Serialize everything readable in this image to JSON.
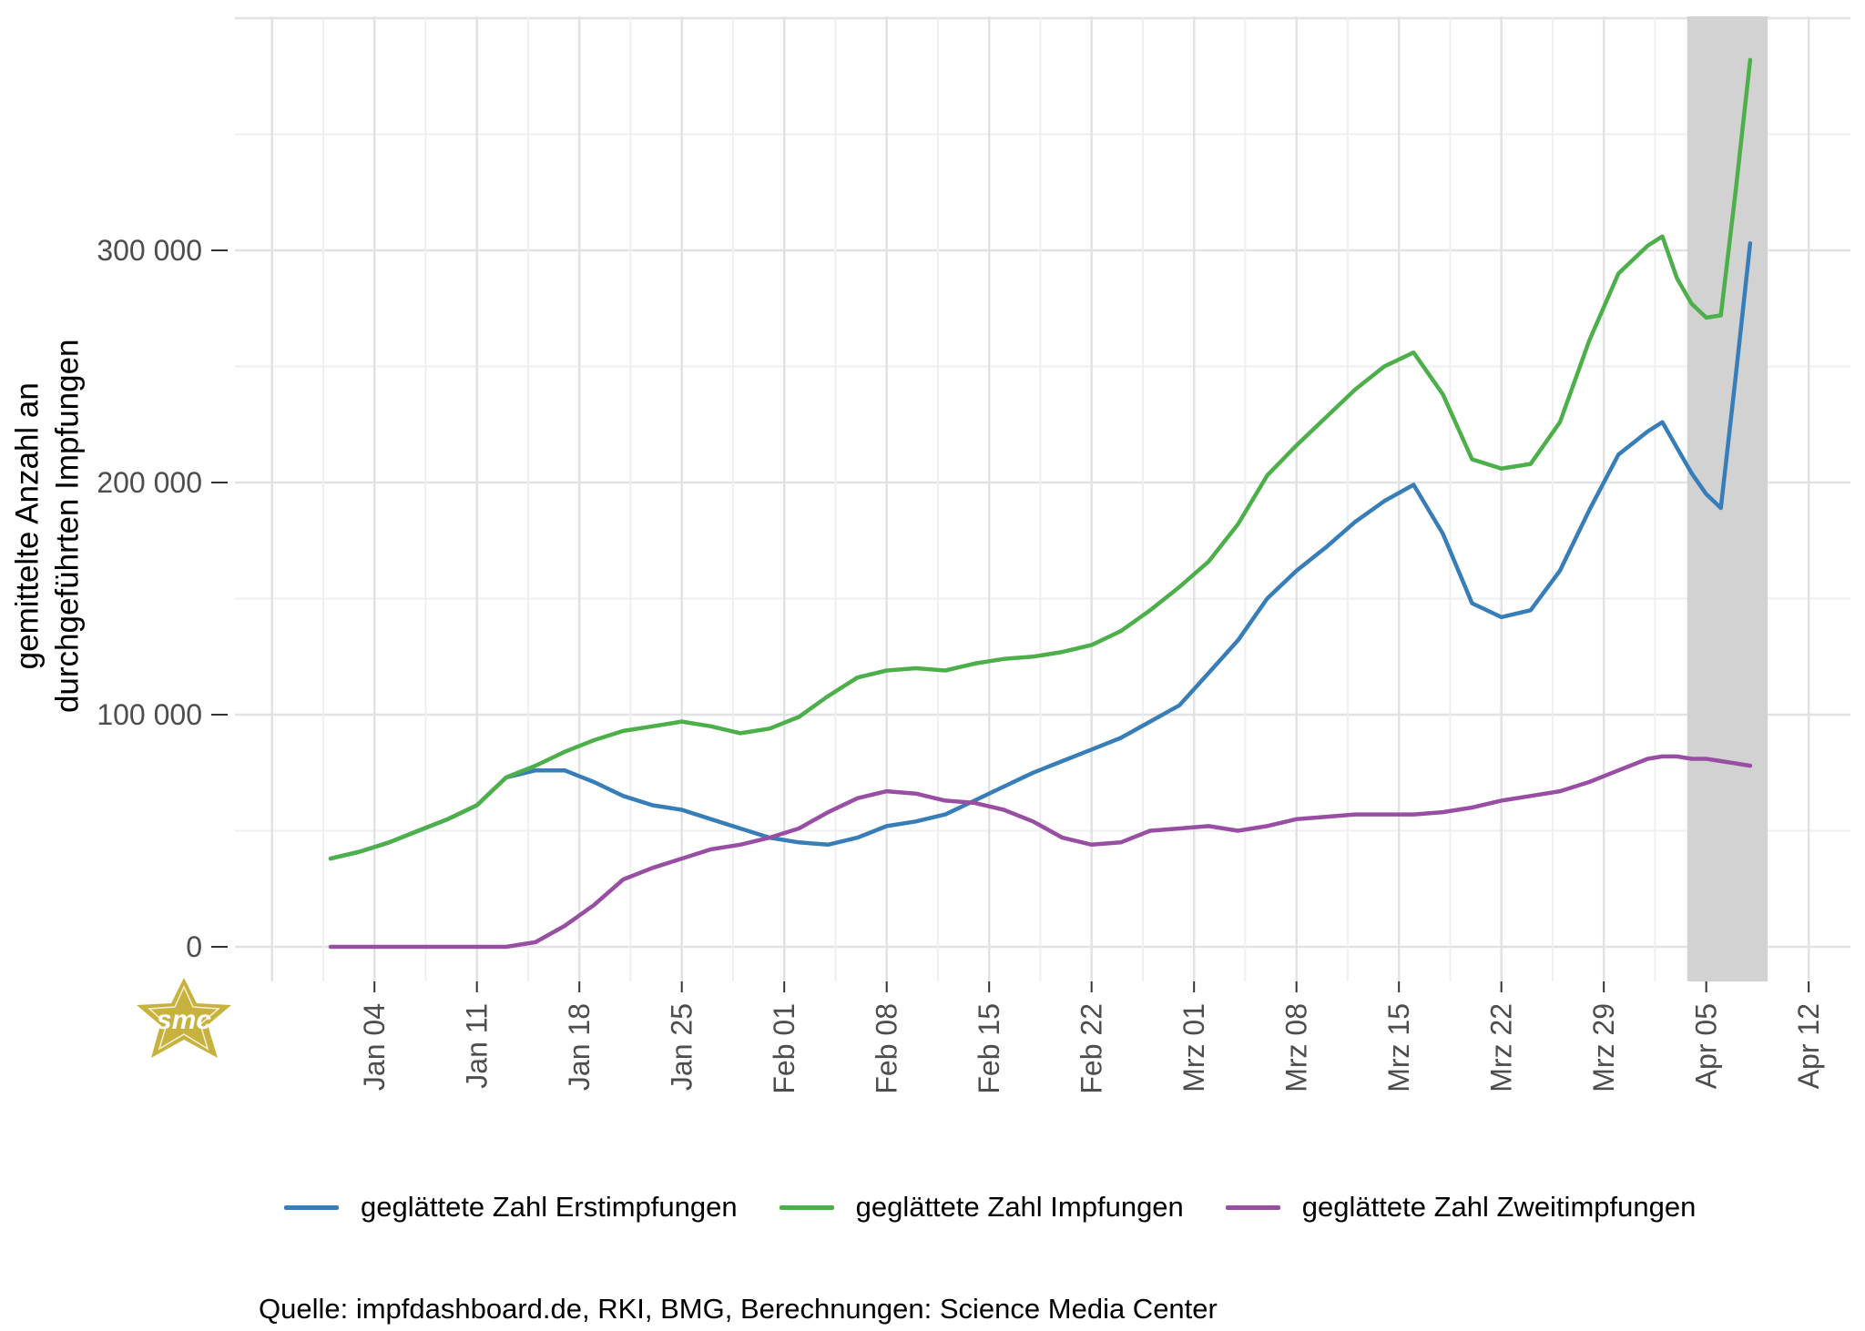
{
  "page": {
    "background": "#ffffff"
  },
  "axes": {
    "y_title_line1": "gemittelte Anzahl an",
    "y_title_line2": "durchgeführten Impfungen",
    "tick_label_color": "#4d4d4d"
  },
  "legend": {
    "items": [
      {
        "label": "geglättete Zahl Erstimpfungen",
        "color": "#377eb8"
      },
      {
        "label": "geglättete Zahl Impfungen",
        "color": "#4daf4a"
      },
      {
        "label": "geglättete Zahl Zweitimpfungen",
        "color": "#984ea3"
      }
    ]
  },
  "source": "Quelle: impfdashboard.de, RKI, BMG, Berechnungen: Science Media Center",
  "logo": {
    "text": "smc",
    "color": "#c8b23e"
  },
  "chart_data": {
    "type": "line",
    "title": "",
    "xlabel": "",
    "ylabel": "gemittelte Anzahl an durchgeführten Impfungen",
    "ylim": [
      0,
      400000
    ],
    "grid": true,
    "minor_grid": true,
    "legend_position": "bottom",
    "x_dates": [
      "Jan 01",
      "Jan 03",
      "Jan 05",
      "Jan 07",
      "Jan 09",
      "Jan 11",
      "Jan 13",
      "Jan 15",
      "Jan 17",
      "Jan 19",
      "Jan 21",
      "Jan 23",
      "Jan 25",
      "Jan 27",
      "Jan 29",
      "Jan 31",
      "Feb 02",
      "Feb 04",
      "Feb 06",
      "Feb 08",
      "Feb 10",
      "Feb 12",
      "Feb 14",
      "Feb 16",
      "Feb 18",
      "Feb 20",
      "Feb 22",
      "Feb 24",
      "Feb 26",
      "Feb 28",
      "Mrz 02",
      "Mrz 04",
      "Mrz 06",
      "Mrz 08",
      "Mrz 10",
      "Mrz 12",
      "Mrz 14",
      "Mrz 16",
      "Mrz 18",
      "Mrz 20",
      "Mrz 22",
      "Mrz 24",
      "Mrz 26",
      "Mrz 28",
      "Mrz 30",
      "Apr 01",
      "Apr 02",
      "Apr 03",
      "Apr 04",
      "Apr 05",
      "Apr 06",
      "Apr 07",
      "Apr 08"
    ],
    "x_day_index": [
      0,
      2,
      4,
      6,
      8,
      10,
      12,
      14,
      16,
      18,
      20,
      22,
      24,
      26,
      28,
      30,
      32,
      34,
      36,
      38,
      40,
      42,
      44,
      46,
      48,
      50,
      52,
      54,
      56,
      58,
      60,
      62,
      64,
      66,
      68,
      70,
      72,
      74,
      76,
      78,
      80,
      82,
      84,
      86,
      88,
      90,
      91,
      92,
      93,
      94,
      95,
      96,
      97
    ],
    "series": [
      {
        "name": "geglättete Zahl Erstimpfungen",
        "color": "#377eb8",
        "values": [
          38000,
          41000,
          45000,
          50000,
          55000,
          61000,
          73000,
          76000,
          76000,
          71000,
          65000,
          61000,
          59000,
          55000,
          51000,
          47000,
          45000,
          44000,
          47000,
          52000,
          54000,
          57000,
          63000,
          69000,
          75000,
          80000,
          85000,
          90000,
          97000,
          104000,
          118000,
          132000,
          150000,
          162000,
          172000,
          183000,
          192000,
          199000,
          178000,
          148000,
          142000,
          145000,
          162000,
          188000,
          212000,
          222000,
          226000,
          215000,
          204000,
          195000,
          189000,
          245000,
          303000
        ]
      },
      {
        "name": "geglättete Zahl Impfungen",
        "color": "#4daf4a",
        "values": [
          38000,
          41000,
          45000,
          50000,
          55000,
          61000,
          73000,
          78000,
          84000,
          89000,
          93000,
          95000,
          97000,
          95000,
          92000,
          94000,
          99000,
          108000,
          116000,
          119000,
          120000,
          119000,
          122000,
          124000,
          125000,
          127000,
          130000,
          136000,
          145000,
          155000,
          166000,
          182000,
          203000,
          216000,
          228000,
          240000,
          250000,
          256000,
          238000,
          210000,
          206000,
          208000,
          226000,
          261000,
          290000,
          302000,
          306000,
          288000,
          277000,
          271000,
          272000,
          325000,
          382000
        ]
      },
      {
        "name": "geglättete Zahl Zweitimpfungen",
        "color": "#984ea3",
        "values": [
          0,
          0,
          0,
          0,
          0,
          0,
          0,
          2000,
          9000,
          18000,
          29000,
          34000,
          38000,
          42000,
          44000,
          47000,
          51000,
          58000,
          64000,
          67000,
          66000,
          63000,
          62000,
          59000,
          54000,
          47000,
          44000,
          45000,
          50000,
          51000,
          52000,
          50000,
          52000,
          55000,
          56000,
          57000,
          57000,
          57000,
          58000,
          60000,
          63000,
          65000,
          67000,
          71000,
          76000,
          81000,
          82000,
          82000,
          81000,
          81000,
          80000,
          79000,
          78000
        ]
      }
    ],
    "x_ticks": [
      {
        "label": "Jan 04",
        "day_index": 3
      },
      {
        "label": "Jan 11",
        "day_index": 10
      },
      {
        "label": "Jan 18",
        "day_index": 17
      },
      {
        "label": "Jan 25",
        "day_index": 24
      },
      {
        "label": "Feb 01",
        "day_index": 31
      },
      {
        "label": "Feb 08",
        "day_index": 38
      },
      {
        "label": "Feb 15",
        "day_index": 45
      },
      {
        "label": "Feb 22",
        "day_index": 52
      },
      {
        "label": "Mrz 01",
        "day_index": 59
      },
      {
        "label": "Mrz 08",
        "day_index": 66
      },
      {
        "label": "Mrz 15",
        "day_index": 73
      },
      {
        "label": "Mrz 22",
        "day_index": 80
      },
      {
        "label": "Mrz 29",
        "day_index": 87
      },
      {
        "label": "Apr 05",
        "day_index": 94
      },
      {
        "label": "Apr 12",
        "day_index": 101
      }
    ],
    "y_ticks": [
      {
        "label": "0",
        "value": 0
      },
      {
        "label": "100 000",
        "value": 100000
      },
      {
        "label": "200 000",
        "value": 200000
      },
      {
        "label": "300 000",
        "value": 300000
      }
    ],
    "highlight_band": {
      "from_day_index": 92.7,
      "to_day_index": 98.2,
      "color": "#d2d2d2"
    },
    "style": {
      "grid_major_color": "#e2e2e2",
      "grid_minor_color": "#efefef",
      "tick_color": "#333333",
      "line_width": 4.5
    }
  }
}
